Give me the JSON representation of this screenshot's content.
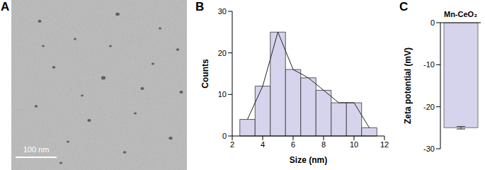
{
  "chart_data": [
    {
      "type": "image",
      "panel": "A",
      "scale_bar": "100 nm"
    },
    {
      "type": "histogram",
      "panel": "B",
      "bins": [
        2.5,
        3.5,
        4.5,
        5.5,
        6.5,
        7.5,
        8.5,
        9.5,
        10.5,
        11.5
      ],
      "counts": [
        4,
        12,
        25,
        16,
        14,
        11,
        8,
        8,
        2
      ],
      "xlabel": "Size (nm)",
      "ylabel": "Counts",
      "xlim": [
        2,
        12
      ],
      "xticks": [
        2,
        4,
        6,
        8,
        10,
        12
      ],
      "ylim": [
        0,
        30
      ],
      "yticks": [
        0,
        10,
        20,
        30
      ],
      "color": "#d6d4ec"
    },
    {
      "type": "bar",
      "panel": "C",
      "categories": [
        "Mn-CeO₂"
      ],
      "values": [
        -25
      ],
      "errors": [
        0.3
      ],
      "ylabel": "Zeta potential (mV)",
      "ylim": [
        -30,
        0
      ],
      "yticks": [
        -30,
        -20,
        -10,
        0
      ],
      "color": "#d6d4ec"
    }
  ]
}
